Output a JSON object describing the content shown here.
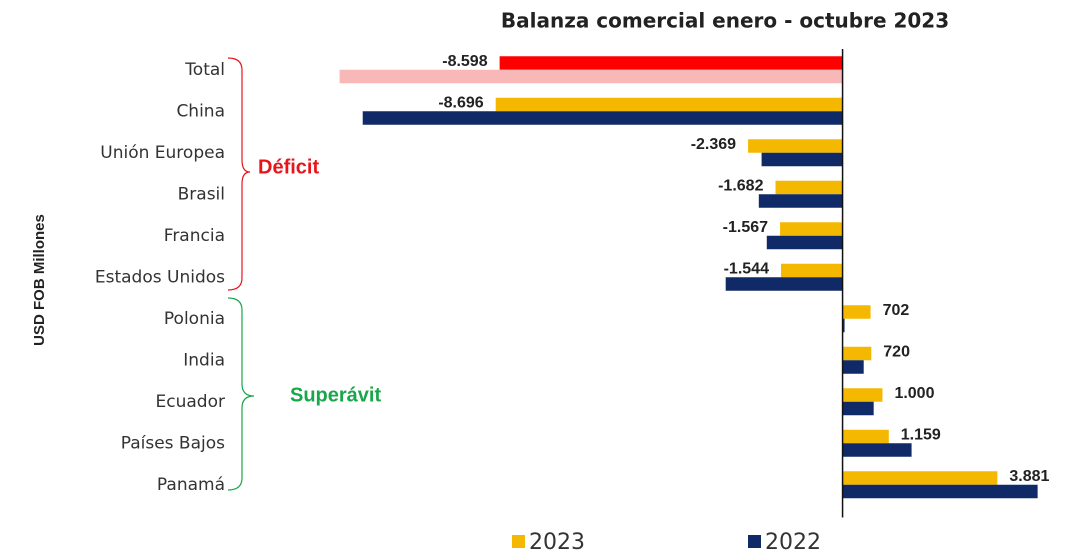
{
  "chart_data": {
    "type": "hbar",
    "title": "Balanza comercial enero - octubre 2023",
    "y_label": "USD FOB Millones",
    "categories": [
      "Total",
      "China",
      "Unión Europea",
      "Brasil",
      "Francia",
      "Estados Unidos",
      "Polonia",
      "India",
      "Ecuador",
      "Países Bajos",
      "Panamá"
    ],
    "series": [
      {
        "name": "2023",
        "color": "#f5b800",
        "colors": [
          "#ff0000",
          null,
          null,
          null,
          null,
          null,
          null,
          null,
          null,
          null,
          null
        ],
        "values": [
          -8598,
          -8696,
          -2369,
          -1682,
          -1567,
          -1544,
          702,
          720,
          1000,
          1159,
          3881
        ],
        "value_labels": [
          "-8.598",
          "-8.696",
          "-2.369",
          "-1.682",
          "-1.567",
          "-1.544",
          "702",
          "720",
          "1.000",
          "1.159",
          "3.881"
        ]
      },
      {
        "name": "2022",
        "color": "#0f2a66",
        "colors": [
          "#f9b8b8",
          null,
          null,
          null,
          null,
          null,
          null,
          null,
          null,
          null,
          null
        ],
        "values": [
          -12610,
          -12030,
          -2030,
          -2100,
          -1900,
          -2930,
          50,
          530,
          780,
          1730,
          4890
        ]
      }
    ],
    "xlim": [
      -12700,
      5000
    ],
    "annotations": [
      {
        "text": "Déficit",
        "color": "#e8141b"
      },
      {
        "text": "Superávit",
        "color": "#1aa64a"
      }
    ]
  }
}
